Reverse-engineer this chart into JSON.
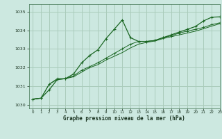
{
  "xlabel": "Graphe pression niveau de la mer (hPa)",
  "bg_color": "#cce8e0",
  "grid_color": "#aaccbb",
  "line_color": "#1a6622",
  "ylim": [
    1029.8,
    1035.4
  ],
  "xlim": [
    -0.5,
    23
  ],
  "yticks": [
    1030,
    1031,
    1032,
    1033,
    1034,
    1035
  ],
  "xticks": [
    0,
    1,
    2,
    3,
    4,
    5,
    6,
    7,
    8,
    9,
    10,
    11,
    12,
    13,
    14,
    15,
    16,
    17,
    18,
    19,
    20,
    21,
    22,
    23
  ],
  "x": [
    0,
    1,
    2,
    3,
    4,
    5,
    6,
    7,
    8,
    9,
    10,
    11,
    12,
    13,
    14,
    15,
    16,
    17,
    18,
    19,
    20,
    21,
    22,
    23
  ],
  "y_main": [
    1030.3,
    1030.35,
    1030.8,
    1031.35,
    1031.4,
    1031.65,
    1032.25,
    1032.65,
    1032.95,
    1033.55,
    1034.05,
    1034.55,
    1033.6,
    1033.4,
    1033.4,
    1033.45,
    1033.6,
    1033.75,
    1033.9,
    1034.05,
    1034.2,
    1034.5,
    1034.7,
    1034.72
  ],
  "y_line2": [
    1030.3,
    1030.35,
    1031.1,
    1031.4,
    1031.4,
    1031.55,
    1031.85,
    1032.05,
    1032.25,
    1032.5,
    1032.75,
    1033.0,
    1033.25,
    1033.4,
    1033.4,
    1033.45,
    1033.6,
    1033.7,
    1033.85,
    1033.95,
    1034.05,
    1034.15,
    1034.3,
    1034.4
  ],
  "y_line3": [
    1030.3,
    1030.35,
    1031.1,
    1031.35,
    1031.4,
    1031.5,
    1031.75,
    1032.0,
    1032.15,
    1032.4,
    1032.6,
    1032.8,
    1033.05,
    1033.25,
    1033.35,
    1033.42,
    1033.55,
    1033.65,
    1033.75,
    1033.85,
    1033.95,
    1034.08,
    1034.22,
    1034.35
  ]
}
